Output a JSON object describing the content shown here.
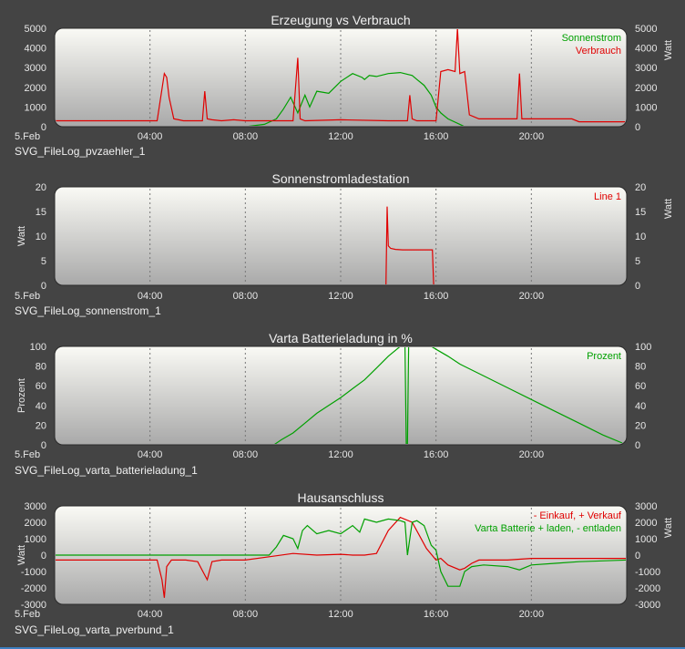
{
  "date_label": "5.Feb",
  "chart_data": [
    {
      "type": "line",
      "title": "Erzeugung vs Verbrauch",
      "file_label": "SVG_FileLog_pvzaehler_1",
      "ylabel_left": "",
      "ylabel_right": "Watt",
      "ylim": [
        0,
        5000
      ],
      "yticks": [
        0,
        1000,
        2000,
        3000,
        4000,
        5000
      ],
      "yticks_right": [
        0,
        1000,
        2000,
        3000,
        4000,
        5000
      ],
      "xticks": [
        "04:00",
        "08:00",
        "12:00",
        "16:00",
        "20:00"
      ],
      "x_hours": [
        4,
        8,
        12,
        16,
        20
      ],
      "series": [
        {
          "name": "Sonnenstrom",
          "color": "#00a000",
          "x": [
            8.0,
            8.8,
            9.3,
            9.6,
            9.9,
            10.2,
            10.5,
            10.7,
            11.0,
            11.5,
            12.0,
            12.5,
            12.9,
            13.0,
            13.2,
            13.5,
            14.0,
            14.5,
            15.0,
            15.2,
            15.5,
            15.8,
            16.0,
            16.2,
            16.5,
            17.0,
            17.2
          ],
          "y": [
            0,
            120,
            400,
            900,
            1500,
            700,
            1600,
            1000,
            1800,
            1700,
            2300,
            2700,
            2500,
            2400,
            2600,
            2550,
            2700,
            2750,
            2600,
            2400,
            2100,
            1600,
            1000,
            700,
            400,
            120,
            0
          ]
        },
        {
          "name": "Verbrauch",
          "color": "#e00000",
          "x": [
            0,
            3.0,
            3.3,
            4.3,
            4.6,
            4.7,
            4.8,
            5.0,
            5.2,
            5.4,
            6.2,
            6.3,
            6.4,
            6.6,
            7.0,
            7.5,
            8.0,
            9.0,
            9.5,
            10.0,
            10.2,
            10.3,
            10.5,
            12.0,
            14.0,
            14.8,
            14.9,
            15.0,
            15.2,
            15.5,
            16.0,
            16.2,
            16.5,
            16.8,
            16.9,
            17.0,
            17.2,
            17.4,
            17.8,
            17.9,
            18.5,
            18.8,
            19.4,
            19.5,
            19.6,
            20.0,
            21.7,
            22.0,
            24.0
          ],
          "y": [
            300,
            300,
            300,
            300,
            2700,
            2500,
            1500,
            400,
            350,
            300,
            300,
            1800,
            400,
            350,
            300,
            350,
            300,
            300,
            300,
            300,
            3500,
            400,
            300,
            350,
            300,
            300,
            1600,
            400,
            300,
            300,
            300,
            2800,
            2900,
            2800,
            5000,
            2700,
            2800,
            600,
            400,
            400,
            400,
            400,
            400,
            2700,
            400,
            400,
            400,
            250,
            250
          ]
        }
      ]
    },
    {
      "type": "line",
      "title": "Sonnenstromladestation",
      "file_label": "SVG_FileLog_sonnenstrom_1",
      "ylabel_left": "Watt",
      "ylabel_right": "Watt",
      "ylim": [
        0,
        20
      ],
      "yticks": [
        0,
        5,
        10,
        15,
        20
      ],
      "yticks_right": [
        0,
        5,
        10,
        15,
        20
      ],
      "xticks": [
        "04:00",
        "08:00",
        "12:00",
        "16:00",
        "20:00"
      ],
      "x_hours": [
        4,
        8,
        12,
        16,
        20
      ],
      "series": [
        {
          "name": "Line 1",
          "color": "#e00000",
          "x": [
            0,
            13.9,
            13.95,
            14.0,
            14.1,
            14.3,
            14.6,
            15.0,
            15.5,
            15.85,
            15.9,
            24.0
          ],
          "y": [
            0,
            0,
            16,
            8,
            7.5,
            7.3,
            7.2,
            7.2,
            7.2,
            7.2,
            0,
            0
          ]
        }
      ]
    },
    {
      "type": "line",
      "title": "Varta Batterieladung in %",
      "file_label": "SVG_FileLog_varta_batterieladung_1",
      "ylabel_left": "Prozent",
      "ylabel_right": "",
      "ylim": [
        0,
        100
      ],
      "yticks": [
        0,
        20,
        40,
        60,
        80,
        100
      ],
      "yticks_right": [
        0,
        20,
        40,
        60,
        80,
        100
      ],
      "xticks": [
        "04:00",
        "08:00",
        "12:00",
        "16:00",
        "20:00"
      ],
      "x_hours": [
        4,
        8,
        12,
        16,
        20
      ],
      "series": [
        {
          "name": "Prozent",
          "color": "#00a000",
          "x": [
            0,
            9.2,
            9.5,
            10.0,
            10.5,
            11.0,
            11.5,
            12.0,
            12.5,
            13.0,
            13.5,
            14.0,
            14.5,
            14.7,
            14.75,
            14.8,
            14.85,
            15.2,
            15.8,
            16.0,
            16.5,
            17.0,
            18.0,
            19.0,
            20.0,
            21.0,
            22.0,
            23.0,
            24.0
          ],
          "y": [
            0,
            0,
            5,
            12,
            22,
            32,
            40,
            48,
            57,
            66,
            78,
            90,
            100,
            100,
            0,
            0,
            100,
            100,
            100,
            97,
            90,
            82,
            70,
            58,
            46,
            34,
            22,
            10,
            0
          ]
        }
      ]
    },
    {
      "type": "line",
      "title": "Hausanschluss",
      "file_label": "SVG_FileLog_varta_pverbund_1",
      "ylabel_left": "Watt",
      "ylabel_right": "Watt",
      "ylim": [
        -3000,
        3000
      ],
      "yticks": [
        -3000,
        -2000,
        -1000,
        0,
        1000,
        2000,
        3000
      ],
      "yticks_right": [
        -3000,
        -2000,
        -1000,
        0,
        1000,
        2000,
        3000
      ],
      "xticks": [
        "04:00",
        "08:00",
        "12:00",
        "16:00",
        "20:00"
      ],
      "x_hours": [
        4,
        8,
        12,
        16,
        20
      ],
      "series": [
        {
          "name": "- Einkauf, + Verkauf",
          "color": "#e00000",
          "x": [
            0,
            4.3,
            4.5,
            4.6,
            4.7,
            4.9,
            5.5,
            6.0,
            6.4,
            6.6,
            7.0,
            8.0,
            9.0,
            10.0,
            11.0,
            12.0,
            12.5,
            13.0,
            13.5,
            14.0,
            14.5,
            15.0,
            15.3,
            15.6,
            16.0,
            16.2,
            16.5,
            17.0,
            17.2,
            17.5,
            17.8,
            18.0,
            19.0,
            20.0,
            24.0
          ],
          "y": [
            -300,
            -300,
            -1500,
            -2600,
            -700,
            -300,
            -300,
            -400,
            -1500,
            -400,
            -300,
            -300,
            -100,
            100,
            0,
            50,
            0,
            0,
            100,
            1500,
            2300,
            2000,
            1200,
            400,
            -300,
            -200,
            -600,
            -900,
            -800,
            -500,
            -300,
            -300,
            -300,
            -200,
            -200
          ]
        },
        {
          "name": "Varta Batterie + laden, - entladen",
          "color": "#00a000",
          "x": [
            0,
            9.0,
            9.3,
            9.6,
            10.0,
            10.2,
            10.4,
            10.6,
            11.0,
            11.5,
            12.0,
            12.5,
            12.8,
            13.0,
            13.5,
            14.0,
            14.5,
            14.7,
            14.8,
            15.0,
            15.2,
            15.5,
            15.8,
            16.0,
            16.2,
            16.5,
            17.0,
            17.2,
            17.5,
            18.0,
            19.0,
            19.5,
            20.0,
            21.0,
            22.0,
            24.0
          ],
          "y": [
            0,
            0,
            500,
            1200,
            1000,
            400,
            1500,
            1800,
            1300,
            1500,
            1300,
            1800,
            1400,
            2200,
            2000,
            2200,
            2100,
            2000,
            0,
            2000,
            2100,
            1800,
            600,
            300,
            -1000,
            -1900,
            -1900,
            -1000,
            -700,
            -600,
            -700,
            -900,
            -600,
            -500,
            -400,
            -300
          ]
        }
      ]
    }
  ]
}
